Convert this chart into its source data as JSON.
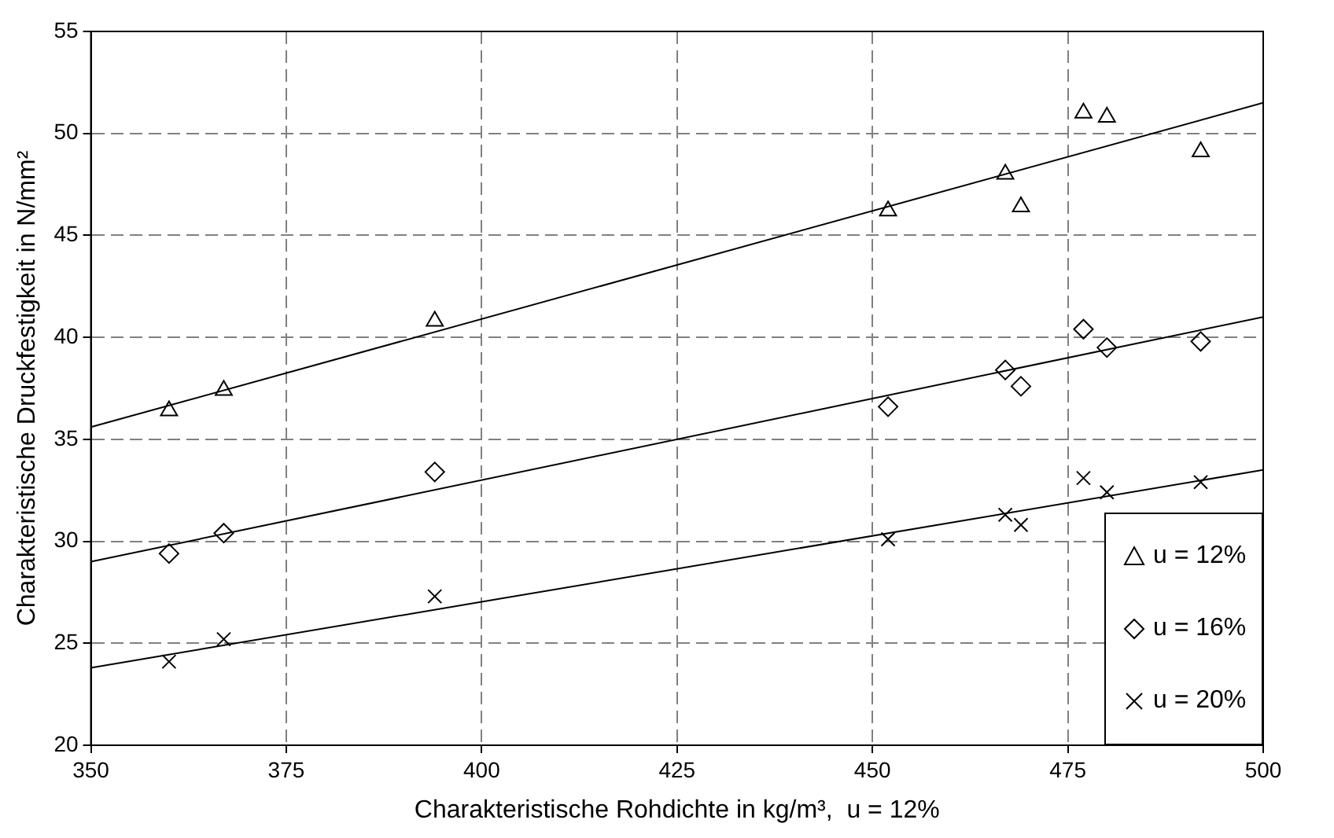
{
  "chart_data": {
    "type": "scatter",
    "xlabel": "Charakteristische Rohdichte in kg/m³,  u = 12%",
    "ylabel": "Charakteristische Druckfestigkeit in N/mm²",
    "xlim": [
      350,
      500
    ],
    "xticks": [
      350,
      375,
      400,
      425,
      450,
      475,
      500
    ],
    "ylim": [
      20,
      55
    ],
    "yticks": [
      20,
      25,
      30,
      35,
      40,
      45,
      50,
      55
    ],
    "grid": true,
    "legend": "bottom right",
    "series": [
      {
        "name": "u = 12%",
        "color": "#000000",
        "marker": "triangle",
        "x": [
          360,
          367,
          394,
          452,
          467,
          469,
          477,
          480,
          492
        ],
        "values": [
          36.4,
          37.4,
          40.8,
          46.2,
          48.0,
          46.4,
          51.0,
          50.8,
          49.1
        ]
      },
      {
        "name": "u = 16%",
        "color": "#000000",
        "marker": "diamond",
        "x": [
          360,
          367,
          394,
          452,
          467,
          469,
          477,
          480,
          492
        ],
        "values": [
          29.4,
          30.4,
          33.4,
          36.6,
          38.4,
          37.6,
          40.4,
          39.5,
          39.8
        ]
      },
      {
        "name": "u = 20%",
        "color": "#000000",
        "marker": "cross",
        "x": [
          360,
          367,
          394,
          452,
          467,
          469,
          477,
          480,
          492
        ],
        "values": [
          24.1,
          25.2,
          27.3,
          30.1,
          31.3,
          30.8,
          33.1,
          32.4,
          32.9
        ]
      },
      {
        "type": "line",
        "color": "#000000",
        "marker": "none",
        "x": [
          350,
          500
        ],
        "values": [
          35.6,
          51.5
        ]
      },
      {
        "type": "line",
        "color": "#000000",
        "marker": "none",
        "x": [
          350,
          500
        ],
        "values": [
          29.0,
          41.0
        ]
      },
      {
        "type": "line",
        "color": "#000000",
        "marker": "none",
        "x": [
          350,
          500
        ],
        "values": [
          23.8,
          33.5
        ]
      }
    ]
  }
}
